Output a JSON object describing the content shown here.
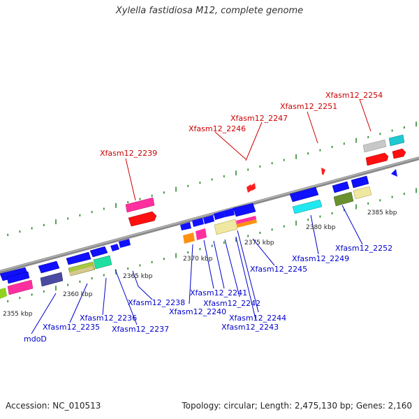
{
  "title": "Xylella fastidiosa M12, complete genome",
  "footer": {
    "accession": "Accession: NC_010513",
    "summary": "Topology: circular; Length: 2,475,130 bp; Genes: 2,160"
  },
  "colors": {
    "backbone": "#8a8a8a",
    "tick": "#2e8b2e",
    "label_forward": "#cc0000",
    "label_reverse": "#0000cc",
    "kbp_text": "#222222"
  },
  "kbp_labels": [
    {
      "id": "kbp-2355",
      "text": "2355 kbp"
    },
    {
      "id": "kbp-2360",
      "text": "2360 kbp"
    },
    {
      "id": "kbp-2365",
      "text": "2365 kbp"
    },
    {
      "id": "kbp-2370",
      "text": "2370 kbp"
    },
    {
      "id": "kbp-2375",
      "text": "2375 kbp"
    },
    {
      "id": "kbp-2380",
      "text": "2380 kbp"
    },
    {
      "id": "kbp-2385",
      "text": "2385 kbp"
    }
  ],
  "forward_labels": [
    {
      "id": "fl-2239",
      "text": "Xfasm12_2239"
    },
    {
      "id": "fl-2246",
      "text": "Xfasm12_2246"
    },
    {
      "id": "fl-2247",
      "text": "Xfasm12_2247"
    },
    {
      "id": "fl-2251",
      "text": "Xfasm12_2251"
    },
    {
      "id": "fl-2254",
      "text": "Xfasm12_2254"
    }
  ],
  "reverse_labels": [
    {
      "id": "rl-mdoD",
      "text": "mdoD"
    },
    {
      "id": "rl-2235",
      "text": "Xfasm12_2235"
    },
    {
      "id": "rl-2236",
      "text": "Xfasm12_2236"
    },
    {
      "id": "rl-2237",
      "text": "Xfasm12_2237"
    },
    {
      "id": "rl-2238",
      "text": "Xfasm12_2238"
    },
    {
      "id": "rl-2240",
      "text": "Xfasm12_2240"
    },
    {
      "id": "rl-2241",
      "text": "Xfasm12_2241"
    },
    {
      "id": "rl-2242",
      "text": "Xfasm12_2242"
    },
    {
      "id": "rl-2243",
      "text": "Xfasm12_2243"
    },
    {
      "id": "rl-2244",
      "text": "Xfasm12_2244"
    },
    {
      "id": "rl-2245",
      "text": "Xfasm12_2245"
    },
    {
      "id": "rl-2249",
      "text": "Xfasm12_2249"
    },
    {
      "id": "rl-2252",
      "text": "Xfasm12_2252"
    }
  ]
}
